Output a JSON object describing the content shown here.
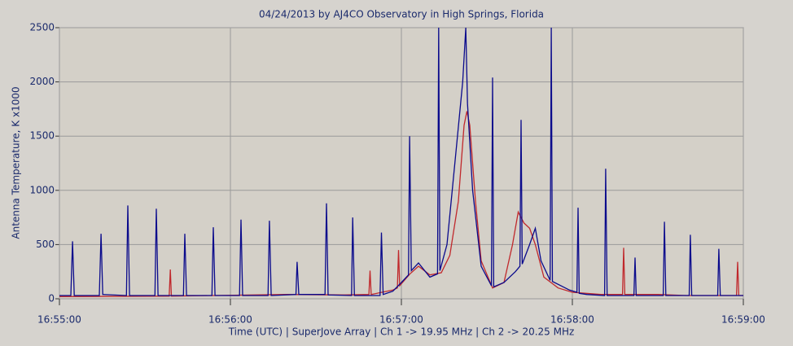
{
  "chart_data": {
    "type": "line",
    "title": "04/24/2013  by  AJ4CO Observatory  in  High Springs, Florida",
    "x_label": "Time (UTC)   |   SuperJove Array   |   Ch 1 -> 19.95 MHz   |   Ch 2 -> 20.25 MHz",
    "y_label": "Antenna Temperature, K x1000",
    "xlim": [
      0,
      240
    ],
    "xticks": [
      {
        "value": 0,
        "label": "16:55:00"
      },
      {
        "value": 60,
        "label": "16:56:00"
      },
      {
        "value": 120,
        "label": "16:57:00"
      },
      {
        "value": 180,
        "label": "16:58:00"
      },
      {
        "value": 240,
        "label": "16:59:00"
      }
    ],
    "ylim": [
      0,
      2500
    ],
    "yticks": [
      0,
      500,
      1000,
      1500,
      2000,
      2500
    ],
    "grid": true,
    "series": [
      {
        "color": "#c0282c",
        "x": [
          0,
          38.5,
          38.9,
          39.3,
          80,
          100,
          108.6,
          109,
          109.4,
          117,
          118.6,
          119,
          119.4,
          123,
          126,
          130,
          134,
          137,
          140,
          142,
          143,
          144,
          146,
          148,
          152,
          156,
          159,
          161,
          163,
          165,
          167,
          170,
          175,
          180,
          190,
          197.6,
          198,
          198.4,
          210,
          220,
          237.6,
          238,
          238.4,
          240
        ],
        "values": [
          20,
          25,
          270,
          25,
          40,
          35,
          40,
          260,
          40,
          80,
          100,
          450,
          120,
          230,
          300,
          220,
          240,
          400,
          900,
          1600,
          1730,
          1600,
          900,
          350,
          100,
          150,
          500,
          800,
          700,
          650,
          500,
          200,
          100,
          60,
          40,
          40,
          470,
          40,
          40,
          30,
          30,
          340,
          30,
          30
        ]
      },
      {
        "color": "#0a0a8c",
        "x": [
          0,
          4,
          4.6,
          5.2,
          14,
          14.6,
          15.2,
          23.5,
          24,
          24.6,
          33.5,
          34,
          34.6,
          43.5,
          44,
          44.6,
          53.5,
          54,
          54.6,
          63.2,
          63.7,
          64.3,
          73.2,
          73.7,
          74.3,
          83,
          83.4,
          84,
          93.2,
          93.7,
          94.3,
          102.5,
          102.9,
          103.5,
          112.5,
          113,
          113.6,
          117,
          120,
          122.5,
          122.9,
          123.5,
          126,
          130,
          132.7,
          133.1,
          133.5,
          136,
          139.7,
          141.5,
          142.6,
          143.2,
          145,
          148,
          151.6,
          152,
          152.4,
          156,
          160,
          161.6,
          162,
          162.4,
          165,
          167,
          169,
          172.2,
          172.6,
          173,
          179,
          181.6,
          182,
          182.4,
          185,
          191.3,
          191.7,
          192.2,
          201.6,
          202,
          202.4,
          211.9,
          212.3,
          212.8,
          221,
          221.4,
          221.9,
          231,
          231.4,
          231.9,
          240
        ],
        "values": [
          30,
          30,
          530,
          30,
          30,
          600,
          40,
          30,
          860,
          30,
          30,
          830,
          30,
          30,
          600,
          30,
          30,
          660,
          30,
          30,
          730,
          30,
          30,
          720,
          30,
          40,
          340,
          40,
          40,
          880,
          35,
          30,
          750,
          30,
          30,
          610,
          40,
          70,
          150,
          220,
          1500,
          260,
          330,
          200,
          230,
          2500,
          260,
          500,
          1500,
          2000,
          2500,
          1800,
          1000,
          300,
          120,
          2040,
          110,
          150,
          250,
          300,
          1650,
          320,
          500,
          650,
          350,
          170,
          2500,
          160,
          80,
          60,
          840,
          50,
          40,
          30,
          1200,
          30,
          30,
          380,
          30,
          30,
          710,
          30,
          30,
          590,
          30,
          30,
          460,
          30,
          30
        ]
      }
    ]
  }
}
